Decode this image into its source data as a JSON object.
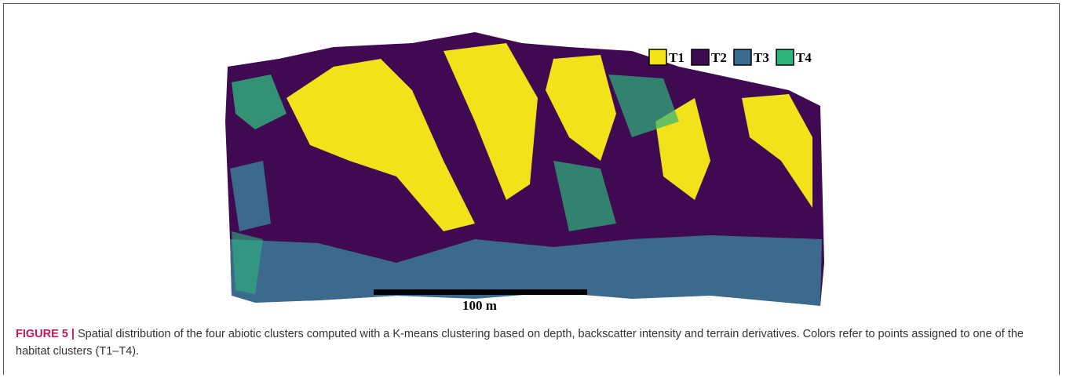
{
  "figure": {
    "legend": [
      {
        "name": "T1",
        "color": "#f2e21a"
      },
      {
        "name": "T2",
        "color": "#3f0a52"
      },
      {
        "name": "T3",
        "color": "#3b6a8c"
      },
      {
        "name": "T4",
        "color": "#2fb47c"
      }
    ],
    "scale_bar_label": "100 m",
    "caption": {
      "label": "FIGURE 5 |",
      "text": "Spatial distribution of the four abiotic clusters computed with a K-means clustering based on depth, backscatter intensity and terrain derivatives. Colors refer to points assigned to one of the habitat clusters (T1–T4)."
    }
  }
}
